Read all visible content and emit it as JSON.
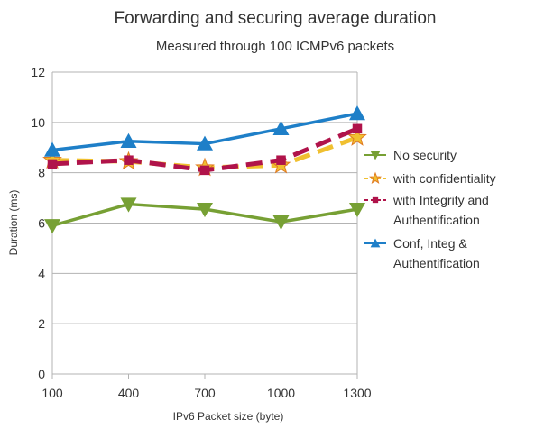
{
  "chart_data": {
    "type": "line",
    "title": "Forwarding and securing average duration",
    "subtitle": "Measured through 100 ICMPv6 packets",
    "xlabel": "IPv6 Packet size (byte)",
    "ylabel": "Duration (ms)",
    "categories": [
      "100",
      "400",
      "700",
      "1000",
      "1300"
    ],
    "ylim": [
      0,
      12
    ],
    "yticks": [
      0,
      2,
      4,
      6,
      8,
      10,
      12
    ],
    "grid": "horizontal",
    "legend_position": "right",
    "series": [
      {
        "name": "No security",
        "values": [
          5.9,
          6.75,
          6.55,
          6.05,
          6.55
        ],
        "color": "#77a034",
        "marker": "triangle-down",
        "dash": "solid"
      },
      {
        "name": "with confidentiality",
        "values": [
          8.5,
          8.45,
          8.2,
          8.3,
          9.4
        ],
        "color": "#f0c030",
        "marker": "star",
        "dash": "dashed"
      },
      {
        "name": "with Integrity and Authentification",
        "values": [
          8.35,
          8.5,
          8.1,
          8.5,
          9.75
        ],
        "color": "#b0134a",
        "marker": "square",
        "dash": "dashed"
      },
      {
        "name": "Conf, Integ & Authentification",
        "values": [
          8.9,
          9.25,
          9.15,
          9.75,
          10.35
        ],
        "color": "#1e7fc8",
        "marker": "triangle-up",
        "dash": "solid"
      }
    ]
  }
}
